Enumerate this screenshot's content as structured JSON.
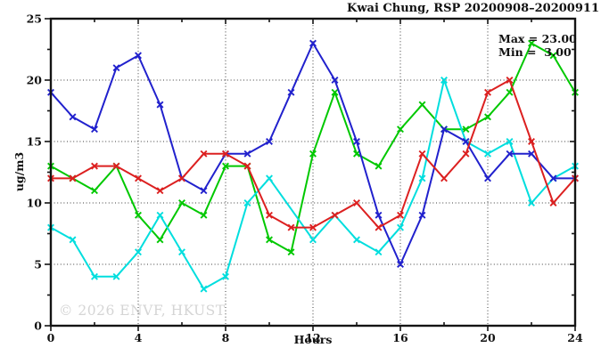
{
  "watermark": "© 2026 ENVF, HKUST",
  "chart_data": {
    "type": "line",
    "title": "Kwai Chung, RSP 20200908–20200911",
    "xlabel": "Hours",
    "ylabel": "ug/m3",
    "xlim": [
      0,
      24
    ],
    "ylim": [
      0,
      25
    ],
    "x_major_ticks": [
      0,
      4,
      8,
      12,
      16,
      20,
      24
    ],
    "x_minor_step": 2,
    "y_major_ticks": [
      0,
      5,
      10,
      15,
      20,
      25
    ],
    "y_minor_step": 2.5,
    "grid": "dotted lines at interior major ticks",
    "legend_position": "none",
    "annotations": [
      "Max = 23.00",
      "Min =  3.00"
    ],
    "marker": "x-cross",
    "x": [
      0,
      1,
      2,
      3,
      4,
      5,
      6,
      7,
      8,
      9,
      10,
      11,
      12,
      13,
      14,
      15,
      16,
      17,
      18,
      19,
      20,
      21,
      22,
      23,
      24
    ],
    "series": [
      {
        "name": "series-green",
        "color": "#00c800",
        "values": [
          13,
          12,
          11,
          13,
          9,
          7,
          10,
          9,
          13,
          13,
          7,
          6,
          14,
          19,
          14,
          13,
          16,
          18,
          16,
          16,
          17,
          19,
          23,
          22,
          19
        ]
      },
      {
        "name": "series-cyan",
        "color": "#00dede",
        "values": [
          8,
          7,
          4,
          4,
          6,
          9,
          6,
          3,
          4,
          10,
          12,
          null,
          7,
          9,
          7,
          6,
          8,
          12,
          20,
          15,
          14,
          15,
          10,
          12,
          13
        ]
      },
      {
        "name": "series-blue",
        "color": "#2121cd",
        "values": [
          19,
          17,
          16,
          21,
          22,
          18,
          12,
          11,
          14,
          14,
          15,
          19,
          23,
          20,
          15,
          9,
          5,
          9,
          16,
          15,
          12,
          14,
          14,
          12,
          12
        ]
      },
      {
        "name": "series-red",
        "color": "#dc2020",
        "values": [
          12,
          12,
          13,
          13,
          12,
          11,
          12,
          14,
          14,
          13,
          9,
          8,
          8,
          9,
          10,
          8,
          9,
          14,
          12,
          14,
          19,
          20,
          15,
          10,
          12
        ]
      }
    ],
    "colors": {
      "frame": "#141414",
      "grid": "#3c3c3c",
      "tick_label": "#111111"
    }
  }
}
